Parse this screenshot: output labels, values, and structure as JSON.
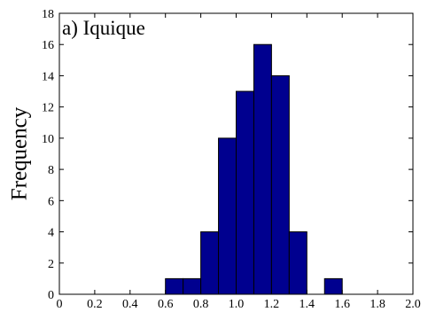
{
  "chart_data": {
    "type": "bar",
    "annotation": "a) Iquique",
    "title": "",
    "xlabel": "",
    "ylabel": "Frequency",
    "xlim": [
      0,
      2.0
    ],
    "ylim": [
      0,
      18
    ],
    "xticks": [
      "0",
      "0.2",
      "0.4",
      "0.6",
      "0.8",
      "1.0",
      "1.2",
      "1.4",
      "1.6",
      "1.8",
      "2.0"
    ],
    "yticks": [
      "0",
      "2",
      "4",
      "6",
      "8",
      "10",
      "12",
      "14",
      "16",
      "18"
    ],
    "bin_width": 0.1,
    "bins": [
      {
        "x0": 0.5,
        "x1": 0.6,
        "value": 0
      },
      {
        "x0": 0.6,
        "x1": 0.7,
        "value": 1
      },
      {
        "x0": 0.7,
        "x1": 0.8,
        "value": 1
      },
      {
        "x0": 0.8,
        "x1": 0.9,
        "value": 4
      },
      {
        "x0": 0.9,
        "x1": 1.0,
        "value": 10
      },
      {
        "x0": 1.0,
        "x1": 1.1,
        "value": 13
      },
      {
        "x0": 1.1,
        "x1": 1.2,
        "value": 16
      },
      {
        "x0": 1.2,
        "x1": 1.3,
        "value": 14
      },
      {
        "x0": 1.3,
        "x1": 1.4,
        "value": 4
      },
      {
        "x0": 1.4,
        "x1": 1.5,
        "value": 0
      },
      {
        "x0": 1.5,
        "x1": 1.6,
        "value": 1
      }
    ],
    "grid": false,
    "bar_color": "#00008f",
    "edge_color": "#000000"
  }
}
